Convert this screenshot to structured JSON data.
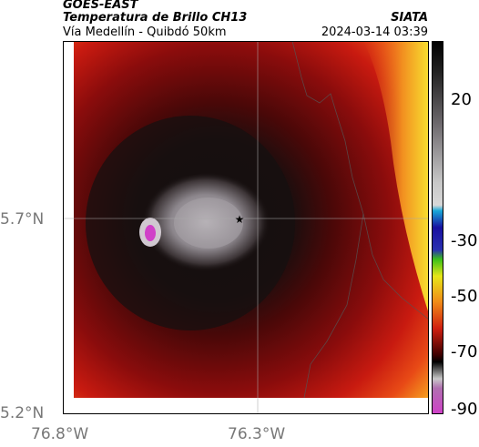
{
  "header": {
    "satellite": "GOES-EAST",
    "product": "Temperatura de Brillo CH13",
    "route": "Vía Medellín - Quibdó 50km",
    "org": "SIATA",
    "datetime": "2024-03-14 03:39"
  },
  "map": {
    "lat_labels": [
      "5.7°N",
      "5.2°N"
    ],
    "lon_labels": [
      "76.8°W",
      "76.3°W"
    ],
    "marker_icon": "star-icon"
  },
  "colorbar": {
    "ticks": [
      "20",
      "-30",
      "-50",
      "-70",
      "-90"
    ],
    "colors": [
      "#f7e92a",
      "#f0a020",
      "#e44818",
      "#c81414",
      "#7a0a0a",
      "#1a1212",
      "#000000",
      "#787478",
      "#c8c8c8",
      "#1aa0d8",
      "#1810a0",
      "#3ac018",
      "#e6e618",
      "#d02010",
      "#1a0000",
      "#b8b8b8",
      "#d040c8"
    ]
  }
}
